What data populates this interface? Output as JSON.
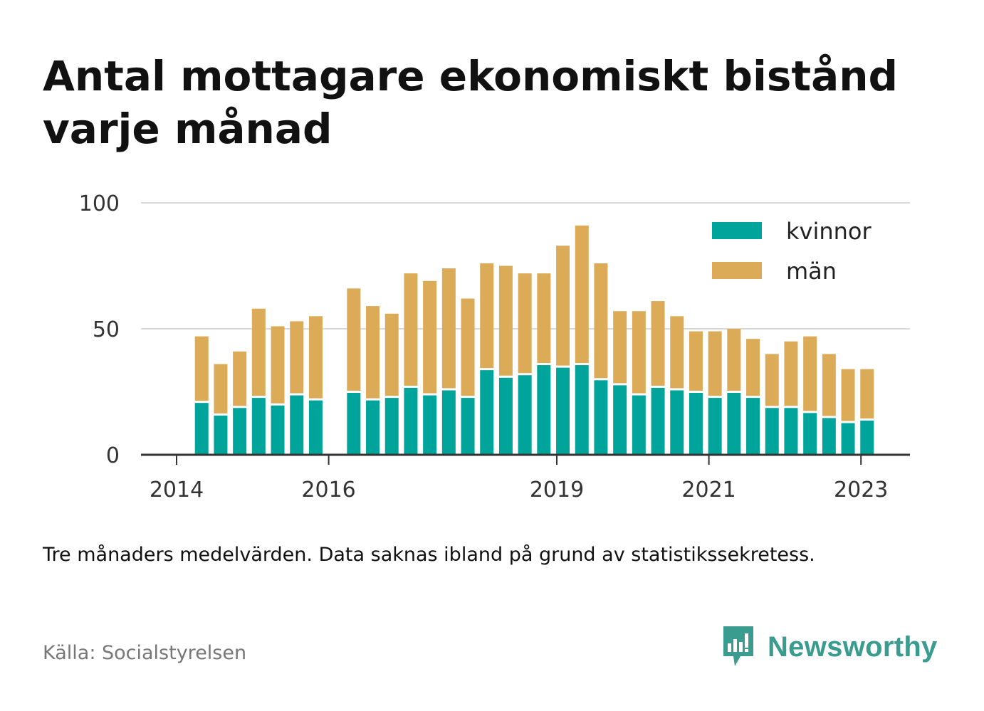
{
  "header": {
    "title": "Antal mottagare ekonomiskt bistånd varje månad"
  },
  "footer": {
    "note": "Tre månaders medelvärden. Data saknas ibland på grund av statistikssekretess.",
    "source": "Källa: Socialstyrelsen",
    "brand": "Newsworthy"
  },
  "colors": {
    "kvinnor": "#00a49a",
    "man": "#dcab57",
    "grid": "#d9d9d9",
    "axis": "#333333"
  },
  "chart_data": {
    "type": "bar",
    "stacked": true,
    "title": "Antal mottagare ekonomiskt bistånd varje månad",
    "xlabel": "",
    "ylabel": "",
    "ylim": [
      0,
      100
    ],
    "yticks": [
      0,
      50,
      100
    ],
    "grid": true,
    "legend_position": "top-right",
    "xlim": [
      2014.0,
      2024.0
    ],
    "xticks": [
      {
        "value": 2014.0,
        "label": "2014"
      },
      {
        "value": 2016.0,
        "label": "2016"
      },
      {
        "value": 2019.0,
        "label": "2019"
      },
      {
        "value": 2021.0,
        "label": "2021"
      },
      {
        "value": 2023.0,
        "label": "2023"
      }
    ],
    "x": [
      2014.33,
      2014.58,
      2014.83,
      2015.08,
      2015.33,
      2015.58,
      2015.83,
      2016.33,
      2016.58,
      2016.83,
      2017.08,
      2017.33,
      2017.58,
      2017.83,
      2018.08,
      2018.33,
      2018.58,
      2018.83,
      2019.08,
      2019.33,
      2019.58,
      2019.83,
      2020.08,
      2020.33,
      2020.58,
      2020.83,
      2021.08,
      2021.33,
      2021.58,
      2021.83,
      2022.08,
      2022.33,
      2022.58,
      2022.83,
      2023.08
    ],
    "series": [
      {
        "name": "kvinnor",
        "values": [
          21,
          16,
          19,
          23,
          20,
          24,
          22,
          25,
          22,
          23,
          27,
          24,
          26,
          23,
          34,
          31,
          32,
          36,
          35,
          36,
          30,
          28,
          24,
          27,
          26,
          25,
          23,
          25,
          23,
          19,
          19,
          17,
          15,
          13,
          14
        ]
      },
      {
        "name": "män",
        "values": [
          26,
          20,
          22,
          35,
          31,
          29,
          33,
          41,
          37,
          33,
          45,
          45,
          48,
          39,
          42,
          44,
          40,
          36,
          48,
          55,
          46,
          29,
          33,
          34,
          29,
          24,
          26,
          25,
          23,
          21,
          26,
          30,
          25,
          21,
          20
        ]
      }
    ]
  }
}
